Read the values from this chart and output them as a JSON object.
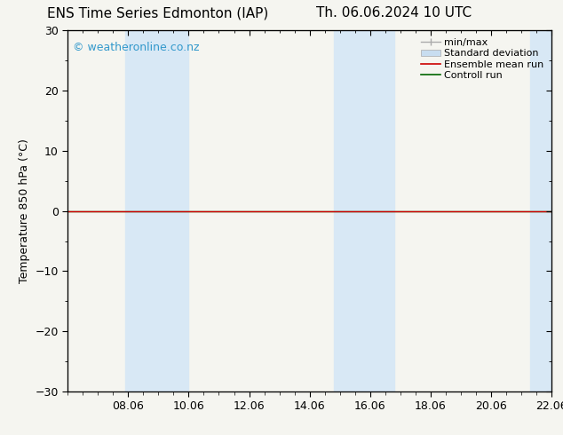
{
  "title_left": "ENS Time Series Edmonton (IAP)",
  "title_right": "Th. 06.06.2024 10 UTC",
  "ylabel": "Temperature 850 hPa (°C)",
  "ylim": [
    -30,
    30
  ],
  "yticks": [
    -30,
    -20,
    -10,
    0,
    10,
    20,
    30
  ],
  "xtick_labels": [
    "08.06",
    "10.06",
    "12.06",
    "14.06",
    "16.06",
    "18.06",
    "20.06",
    "22.06"
  ],
  "xtick_positions": [
    2,
    4,
    6,
    8,
    10,
    12,
    14,
    16
  ],
  "x_min": 0,
  "x_max": 16,
  "watermark": "© weatheronline.co.nz",
  "watermark_color": "#3399cc",
  "shaded_regions": [
    [
      1.9,
      2.5
    ],
    [
      2.5,
      4.0
    ],
    [
      8.8,
      9.8
    ],
    [
      9.8,
      10.8
    ],
    [
      15.3,
      16.0
    ]
  ],
  "shaded_color": "#d8e8f5",
  "zero_line_color": "#000000",
  "ensemble_mean_color": "#cc0000",
  "control_run_color": "#006600",
  "bg_color": "#f5f5f0",
  "plot_bg_color": "#f5f5f0",
  "border_color": "#000000",
  "title_fontsize": 11,
  "tick_fontsize": 9,
  "ylabel_fontsize": 9,
  "legend_fontsize": 8
}
